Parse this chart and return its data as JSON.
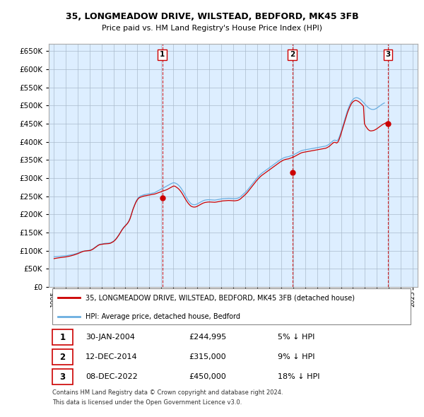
{
  "title": "35, LONGMEADOW DRIVE, WILSTEAD, BEDFORD, MK45 3FB",
  "subtitle": "Price paid vs. HM Land Registry's House Price Index (HPI)",
  "legend_line1": "35, LONGMEADOW DRIVE, WILSTEAD, BEDFORD, MK45 3FB (detached house)",
  "legend_line2": "HPI: Average price, detached house, Bedford",
  "footer1": "Contains HM Land Registry data © Crown copyright and database right 2024.",
  "footer2": "This data is licensed under the Open Government Licence v3.0.",
  "transactions": [
    {
      "num": "1",
      "date": "30-JAN-2004",
      "price": "£244,995",
      "hpi": "5% ↓ HPI"
    },
    {
      "num": "2",
      "date": "12-DEC-2014",
      "price": "£315,000",
      "hpi": "9% ↓ HPI"
    },
    {
      "num": "3",
      "date": "08-DEC-2022",
      "price": "£450,000",
      "hpi": "18% ↓ HPI"
    }
  ],
  "transaction_dates": [
    2004.08,
    2014.94,
    2022.93
  ],
  "transaction_prices": [
    244995,
    315000,
    450000
  ],
  "hpi_color": "#6aaee0",
  "price_color": "#cc0000",
  "dashed_color": "#cc0000",
  "chart_bg": "#ddeeff",
  "background_color": "#ffffff",
  "grid_color": "#aabbcc",
  "ylim": [
    0,
    670000
  ],
  "yticks": [
    0,
    50000,
    100000,
    150000,
    200000,
    250000,
    300000,
    350000,
    400000,
    450000,
    500000,
    550000,
    600000,
    650000
  ],
  "xlim": [
    1994.6,
    2025.4
  ],
  "hpi_data_monthly": {
    "start_year": 1995,
    "start_month": 1,
    "values": [
      83000,
      83200,
      83500,
      83800,
      84000,
      84200,
      84500,
      84800,
      85000,
      85200,
      85500,
      85800,
      86000,
      86300,
      86800,
      87300,
      87800,
      88300,
      88800,
      89500,
      90200,
      91000,
      91800,
      92500,
      93500,
      94500,
      95500,
      96500,
      97500,
      98200,
      98800,
      99200,
      99600,
      100000,
      100300,
      100500,
      101000,
      102000,
      103500,
      105000,
      107000,
      109000,
      111000,
      113000,
      115000,
      116500,
      117500,
      118000,
      118500,
      119000,
      119500,
      120000,
      120200,
      120400,
      120600,
      120800,
      121000,
      122000,
      123500,
      125000,
      127000,
      129500,
      132500,
      136000,
      140000,
      144000,
      148500,
      153000,
      157500,
      161500,
      165000,
      168000,
      171000,
      174000,
      177500,
      182000,
      188000,
      196000,
      205000,
      214000,
      221000,
      228000,
      235000,
      240000,
      244000,
      247000,
      249500,
      251000,
      252000,
      253000,
      254000,
      254500,
      255000,
      255500,
      256000,
      256500,
      257000,
      257500,
      258000,
      258500,
      259000,
      260000,
      261500,
      263000,
      264500,
      266000,
      267500,
      269000,
      270500,
      272000,
      273500,
      275000,
      276500,
      278000,
      279500,
      281000,
      282500,
      284000,
      285500,
      286500,
      287000,
      286500,
      285500,
      284000,
      282000,
      279500,
      276500,
      273000,
      269000,
      264500,
      260000,
      255000,
      250000,
      245000,
      240500,
      236500,
      233000,
      230000,
      228000,
      227000,
      226500,
      226500,
      227000,
      228000,
      229500,
      231000,
      232500,
      234000,
      235500,
      237000,
      238000,
      239000,
      239500,
      240000,
      240200,
      240200,
      240000,
      239800,
      239500,
      239200,
      239000,
      239200,
      239500,
      240000,
      240500,
      241000,
      241500,
      242000,
      242500,
      243000,
      243200,
      243400,
      243500,
      243800,
      244000,
      244200,
      244000,
      243800,
      243500,
      243200,
      243000,
      243200,
      243500,
      244000,
      244500,
      245500,
      247000,
      249000,
      251500,
      254000,
      256500,
      259000,
      261500,
      264500,
      267500,
      271000,
      274500,
      278000,
      281500,
      285000,
      288500,
      292000,
      295500,
      299000,
      302000,
      305000,
      308000,
      310500,
      313000,
      315000,
      317000,
      319000,
      321000,
      323000,
      325000,
      327000,
      329000,
      331000,
      333000,
      335000,
      337000,
      339000,
      341000,
      343000,
      345000,
      347000,
      349000,
      351000,
      352500,
      354000,
      355500,
      356500,
      357500,
      358000,
      358500,
      359000,
      360000,
      361000,
      362000,
      363000,
      364000,
      365500,
      367000,
      368500,
      370000,
      371500,
      373000,
      374500,
      375500,
      376500,
      377000,
      377500,
      378000,
      378500,
      379000,
      379500,
      380000,
      380500,
      381000,
      381500,
      382000,
      382500,
      383000,
      383500,
      384000,
      384500,
      385000,
      385500,
      386000,
      386500,
      387000,
      387500,
      388000,
      389000,
      390500,
      392000,
      394000,
      396500,
      399000,
      401500,
      403500,
      404500,
      404000,
      402500,
      404000,
      408000,
      415000,
      423000,
      432000,
      441000,
      450000,
      459000,
      468000,
      477000,
      486000,
      493000,
      500000,
      506000,
      511000,
      515000,
      518000,
      520000,
      521000,
      521500,
      521000,
      520000,
      518500,
      516500,
      514000,
      511000,
      508000,
      505000,
      502000,
      499000,
      496500,
      494000,
      492000,
      490500,
      489500,
      489000,
      489000,
      489500,
      490500,
      492000,
      494000,
      496000,
      498000,
      500000,
      502000,
      504000,
      505500,
      507000
    ]
  },
  "price_line_data_monthly": {
    "start_year": 1995,
    "start_month": 1,
    "values": [
      78000,
      78500,
      79000,
      79500,
      80000,
      80300,
      80700,
      81000,
      81400,
      81700,
      82000,
      82400,
      82800,
      83300,
      83800,
      84400,
      85000,
      85700,
      86400,
      87200,
      88000,
      88900,
      89800,
      90800,
      92000,
      93200,
      94500,
      95800,
      97000,
      97800,
      98400,
      98800,
      99200,
      99500,
      99800,
      100000,
      100400,
      101200,
      102500,
      104000,
      106000,
      108000,
      110000,
      112000,
      114000,
      115500,
      116500,
      117000,
      117500,
      118000,
      118300,
      118600,
      118800,
      119000,
      119200,
      119500,
      120000,
      121000,
      122500,
      124000,
      126000,
      128500,
      131500,
      135000,
      139000,
      143000,
      147500,
      152000,
      156500,
      160500,
      164000,
      167000,
      170000,
      173000,
      176500,
      181000,
      187000,
      195000,
      204000,
      213000,
      220000,
      227000,
      233000,
      238000,
      242000,
      244995,
      246500,
      247500,
      248500,
      249500,
      250500,
      251000,
      251500,
      252000,
      252500,
      253000,
      253500,
      254000,
      254500,
      255000,
      255500,
      256000,
      257000,
      258000,
      259000,
      260000,
      261000,
      262000,
      263000,
      264000,
      265000,
      266000,
      267000,
      268000,
      269500,
      271000,
      272500,
      274000,
      275500,
      277000,
      278000,
      277500,
      276000,
      274000,
      272000,
      269500,
      266500,
      263000,
      259000,
      254500,
      250000,
      245000,
      240500,
      236000,
      232000,
      228500,
      225500,
      223000,
      221500,
      220500,
      220000,
      220000,
      220500,
      221500,
      223000,
      224500,
      226000,
      227500,
      229000,
      230500,
      231500,
      232500,
      233000,
      233500,
      233800,
      234000,
      234000,
      233800,
      233500,
      233200,
      233000,
      233200,
      233500,
      234000,
      234500,
      235000,
      235500,
      236000,
      236500,
      237000,
      237200,
      237400,
      237500,
      237800,
      238000,
      238200,
      238000,
      237800,
      237500,
      237200,
      237000,
      237200,
      237500,
      238000,
      238500,
      239500,
      241000,
      243000,
      245500,
      248000,
      250500,
      253000,
      255500,
      258500,
      261500,
      265000,
      268500,
      272000,
      275500,
      279000,
      282500,
      286000,
      289500,
      293000,
      296000,
      299000,
      302000,
      304500,
      307000,
      309000,
      311000,
      313000,
      315000,
      317000,
      319000,
      321000,
      323000,
      325000,
      327000,
      329000,
      331000,
      333000,
      335000,
      337000,
      339000,
      341000,
      343000,
      345000,
      346500,
      348000,
      349500,
      350500,
      351500,
      352000,
      352500,
      353000,
      354000,
      355000,
      356000,
      357000,
      358000,
      359500,
      361000,
      362500,
      364000,
      365500,
      367000,
      368500,
      369500,
      370500,
      371000,
      371500,
      372000,
      372500,
      373000,
      373500,
      374000,
      374500,
      375000,
      375500,
      376000,
      376500,
      377000,
      377500,
      378000,
      378500,
      379000,
      379500,
      380000,
      380500,
      381000,
      381500,
      382000,
      383000,
      384500,
      386000,
      388000,
      390500,
      393000,
      395500,
      397500,
      398500,
      398000,
      396500,
      398000,
      402000,
      409000,
      417000,
      426000,
      435000,
      444000,
      453000,
      462000,
      471000,
      480000,
      487000,
      494000,
      500000,
      505000,
      509000,
      511000,
      513000,
      514000,
      513500,
      512500,
      511000,
      509000,
      506500,
      504000,
      501000,
      498000,
      450000,
      444000,
      440000,
      436000,
      433000,
      431000,
      430000,
      430000,
      430500,
      431000,
      432000,
      433500,
      435000,
      437000,
      439000,
      441000,
      443000,
      445000,
      447000,
      448500,
      450000,
      451500,
      453000,
      454500,
      456000
    ]
  }
}
